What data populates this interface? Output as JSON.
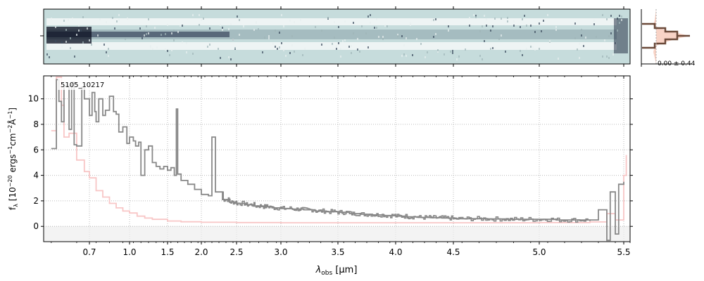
{
  "chart_data": [
    {
      "type": "heatmap",
      "panel": "2d-spectrum",
      "colormap": "bone-teal",
      "background_color": "#c6dcdc",
      "trace_color": "#1b2540"
    },
    {
      "type": "line",
      "panel": "1d-spectrum",
      "annotation": "5105_10217",
      "xlabel": "λobs [μm]",
      "xlabel_main": "λ",
      "xlabel_sub": "obs",
      "xlabel_unit": " [μm]",
      "ylabel": "fλ [10−20 ergs−1cm−2Å−1]",
      "ylabel_parts": {
        "f": "f",
        "lambda_sub": "λ",
        "a": " [10",
        "a_sup": "−20",
        "b": " ergs",
        "b_sup": "−1",
        "c": "cm",
        "c_sup": "−2",
        "d": "Å",
        "d_sup": "−1",
        "e": "]"
      },
      "xlim": [
        0.52,
        5.55
      ],
      "ylim": [
        -1.2,
        11.8
      ],
      "x_scale": "wavelength stretched (wider spacing at short λ)",
      "x_ticks": [
        {
          "value": 0.7,
          "label": "0.7"
        },
        {
          "value": 1.0,
          "label": "1.0"
        },
        {
          "value": 1.5,
          "label": "1.5"
        },
        {
          "value": 2.0,
          "label": "2.0"
        },
        {
          "value": 2.5,
          "label": "2.5"
        },
        {
          "value": 3.0,
          "label": "3.0"
        },
        {
          "value": 3.5,
          "label": "3.5"
        },
        {
          "value": 4.0,
          "label": "4.0"
        },
        {
          "value": 4.5,
          "label": "4.5"
        },
        {
          "value": 5.0,
          "label": "5.0"
        },
        {
          "value": 5.5,
          "label": "5.5"
        }
      ],
      "y_ticks": [
        {
          "value": 0,
          "label": "0"
        },
        {
          "value": 2,
          "label": "2"
        },
        {
          "value": 4,
          "label": "4"
        },
        {
          "value": 6,
          "label": "6"
        },
        {
          "value": 8,
          "label": "8"
        },
        {
          "value": 10,
          "label": "10"
        }
      ],
      "grid": true,
      "series": [
        {
          "role": "flux",
          "color": "#888888",
          "x": [
            0.55,
            0.57,
            0.58,
            0.59,
            0.6,
            0.62,
            0.63,
            0.64,
            0.65,
            0.67,
            0.68,
            0.7,
            0.72,
            0.74,
            0.75,
            0.77,
            0.8,
            0.82,
            0.85,
            0.88,
            0.9,
            0.92,
            0.95,
            0.98,
            1.0,
            1.05,
            1.08,
            1.12,
            1.15,
            1.2,
            1.25,
            1.3,
            1.35,
            1.4,
            1.45,
            1.5,
            1.55,
            1.6,
            1.63,
            1.65,
            1.7,
            1.8,
            1.9,
            2.0,
            2.1,
            2.15,
            2.2,
            2.3,
            2.4,
            2.5,
            2.6,
            2.7,
            2.8,
            2.9,
            3.0,
            3.1,
            3.2,
            3.3,
            3.4,
            3.5,
            3.6,
            3.7,
            3.8,
            3.9,
            4.0,
            4.1,
            4.2,
            4.3,
            4.4,
            4.5,
            4.6,
            4.7,
            4.8,
            4.9,
            5.0,
            5.1,
            5.2,
            5.3,
            5.35,
            5.4,
            5.42,
            5.45,
            5.47,
            5.5
          ],
          "y": [
            6.1,
            11.5,
            9.8,
            8.2,
            11.0,
            7.6,
            11.3,
            6.4,
            6.3,
            10.9,
            10.0,
            8.7,
            10.5,
            9.0,
            8.2,
            10.0,
            8.7,
            9.1,
            10.2,
            9.0,
            8.8,
            7.4,
            7.8,
            6.5,
            7.0,
            6.7,
            6.3,
            6.6,
            4.0,
            6.0,
            6.3,
            5.0,
            4.7,
            4.5,
            4.7,
            4.4,
            4.6,
            4.0,
            9.2,
            4.1,
            3.6,
            3.3,
            2.9,
            2.5,
            2.4,
            7.0,
            2.7,
            2.1,
            1.9,
            1.8,
            1.7,
            1.6,
            1.55,
            1.45,
            1.4,
            1.35,
            1.3,
            1.2,
            1.15,
            1.1,
            1.0,
            0.95,
            0.9,
            0.85,
            0.8,
            0.75,
            0.7,
            0.68,
            0.65,
            0.6,
            0.6,
            0.58,
            0.55,
            0.55,
            0.55,
            0.5,
            0.5,
            0.5,
            1.3,
            -1.1,
            2.7,
            -0.6,
            3.3,
            3.5
          ]
        },
        {
          "role": "model",
          "color": "#f8c6c6",
          "x": [
            0.55,
            0.57,
            0.59,
            0.6,
            0.62,
            0.65,
            0.68,
            0.7,
            0.75,
            0.8,
            0.85,
            0.9,
            0.95,
            1.0,
            1.1,
            1.2,
            1.3,
            1.5,
            1.7,
            2.0,
            2.5,
            3.0,
            3.5,
            4.0,
            4.5,
            5.0,
            5.3,
            5.4,
            5.45,
            5.5,
            5.52
          ],
          "y": [
            7.5,
            11.7,
            9.5,
            7.0,
            7.3,
            5.2,
            4.3,
            3.8,
            2.8,
            2.3,
            1.8,
            1.45,
            1.2,
            1.05,
            0.8,
            0.65,
            0.55,
            0.42,
            0.36,
            0.32,
            0.3,
            0.28,
            0.28,
            0.28,
            0.28,
            0.3,
            0.35,
            1.0,
            0.5,
            4.0,
            5.6
          ]
        }
      ],
      "zero_line": true
    },
    {
      "type": "line",
      "panel": "profile",
      "label": "0.00 ± 0.44",
      "fill_color": "#f8d3c6",
      "line_color": "#6b4a3a"
    }
  ]
}
